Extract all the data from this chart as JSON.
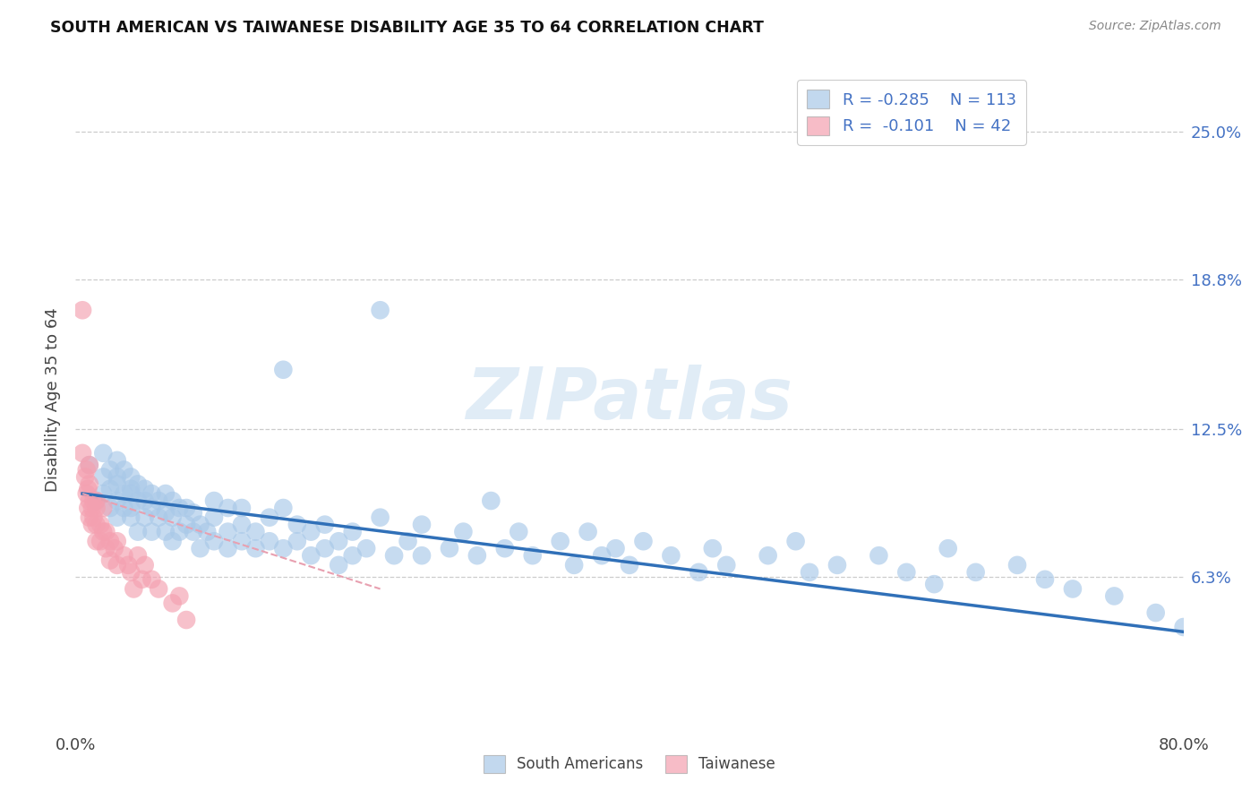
{
  "title": "SOUTH AMERICAN VS TAIWANESE DISABILITY AGE 35 TO 64 CORRELATION CHART",
  "source": "Source: ZipAtlas.com",
  "ylabel": "Disability Age 35 to 64",
  "ytick_labels": [
    "6.3%",
    "12.5%",
    "18.8%",
    "25.0%"
  ],
  "ytick_values": [
    0.063,
    0.125,
    0.188,
    0.25
  ],
  "xlim": [
    0.0,
    0.8
  ],
  "ylim": [
    0.0,
    0.275
  ],
  "watermark_text": "ZIPatlas",
  "south_american_color": "#a8c8e8",
  "taiwanese_color": "#f4a0b0",
  "trend_sa_color": "#3070b8",
  "trend_tw_color": "#e8a0b0",
  "legend_sa_R": -0.285,
  "legend_sa_N": 113,
  "legend_tw_R": -0.101,
  "legend_tw_N": 42,
  "sa_trend_x0": 0.005,
  "sa_trend_x1": 0.8,
  "sa_trend_y0": 0.098,
  "sa_trend_y1": 0.04,
  "tw_trend_x0": 0.005,
  "tw_trend_x1": 0.22,
  "tw_trend_y0": 0.098,
  "tw_trend_y1": 0.058,
  "sa_x": [
    0.01,
    0.015,
    0.02,
    0.02,
    0.02,
    0.025,
    0.025,
    0.025,
    0.03,
    0.03,
    0.03,
    0.03,
    0.03,
    0.035,
    0.035,
    0.035,
    0.04,
    0.04,
    0.04,
    0.04,
    0.04,
    0.045,
    0.045,
    0.045,
    0.05,
    0.05,
    0.05,
    0.055,
    0.055,
    0.055,
    0.06,
    0.06,
    0.065,
    0.065,
    0.065,
    0.07,
    0.07,
    0.07,
    0.075,
    0.075,
    0.08,
    0.08,
    0.085,
    0.085,
    0.09,
    0.09,
    0.095,
    0.1,
    0.1,
    0.1,
    0.11,
    0.11,
    0.11,
    0.12,
    0.12,
    0.12,
    0.13,
    0.13,
    0.14,
    0.14,
    0.15,
    0.15,
    0.15,
    0.16,
    0.16,
    0.17,
    0.17,
    0.18,
    0.18,
    0.19,
    0.19,
    0.2,
    0.2,
    0.21,
    0.22,
    0.22,
    0.23,
    0.24,
    0.25,
    0.25,
    0.27,
    0.28,
    0.29,
    0.3,
    0.31,
    0.32,
    0.33,
    0.35,
    0.36,
    0.37,
    0.38,
    0.39,
    0.4,
    0.41,
    0.43,
    0.45,
    0.46,
    0.47,
    0.5,
    0.52,
    0.53,
    0.55,
    0.58,
    0.6,
    0.62,
    0.63,
    0.65,
    0.68,
    0.7,
    0.72,
    0.75,
    0.78,
    0.8
  ],
  "sa_y": [
    0.11,
    0.095,
    0.105,
    0.098,
    0.115,
    0.1,
    0.108,
    0.092,
    0.102,
    0.095,
    0.105,
    0.112,
    0.088,
    0.098,
    0.092,
    0.108,
    0.1,
    0.092,
    0.098,
    0.105,
    0.088,
    0.095,
    0.102,
    0.082,
    0.095,
    0.1,
    0.088,
    0.092,
    0.098,
    0.082,
    0.095,
    0.088,
    0.09,
    0.098,
    0.082,
    0.088,
    0.095,
    0.078,
    0.092,
    0.082,
    0.085,
    0.092,
    0.082,
    0.09,
    0.085,
    0.075,
    0.082,
    0.088,
    0.095,
    0.078,
    0.092,
    0.082,
    0.075,
    0.085,
    0.078,
    0.092,
    0.082,
    0.075,
    0.088,
    0.078,
    0.15,
    0.092,
    0.075,
    0.085,
    0.078,
    0.082,
    0.072,
    0.085,
    0.075,
    0.078,
    0.068,
    0.082,
    0.072,
    0.075,
    0.088,
    0.175,
    0.072,
    0.078,
    0.085,
    0.072,
    0.075,
    0.082,
    0.072,
    0.095,
    0.075,
    0.082,
    0.072,
    0.078,
    0.068,
    0.082,
    0.072,
    0.075,
    0.068,
    0.078,
    0.072,
    0.065,
    0.075,
    0.068,
    0.072,
    0.078,
    0.065,
    0.068,
    0.072,
    0.065,
    0.06,
    0.075,
    0.065,
    0.068,
    0.062,
    0.058,
    0.055,
    0.048,
    0.042
  ],
  "tw_x": [
    0.005,
    0.005,
    0.007,
    0.008,
    0.008,
    0.009,
    0.009,
    0.01,
    0.01,
    0.01,
    0.01,
    0.012,
    0.012,
    0.013,
    0.013,
    0.015,
    0.015,
    0.015,
    0.015,
    0.018,
    0.018,
    0.02,
    0.02,
    0.022,
    0.022,
    0.025,
    0.025,
    0.028,
    0.03,
    0.03,
    0.035,
    0.038,
    0.04,
    0.042,
    0.045,
    0.048,
    0.05,
    0.055,
    0.06,
    0.07,
    0.075,
    0.08
  ],
  "tw_y": [
    0.175,
    0.115,
    0.105,
    0.098,
    0.108,
    0.092,
    0.1,
    0.095,
    0.088,
    0.102,
    0.11,
    0.092,
    0.085,
    0.095,
    0.088,
    0.092,
    0.085,
    0.078,
    0.095,
    0.085,
    0.078,
    0.082,
    0.092,
    0.082,
    0.075,
    0.078,
    0.07,
    0.075,
    0.078,
    0.068,
    0.072,
    0.068,
    0.065,
    0.058,
    0.072,
    0.062,
    0.068,
    0.062,
    0.058,
    0.052,
    0.055,
    0.045
  ]
}
